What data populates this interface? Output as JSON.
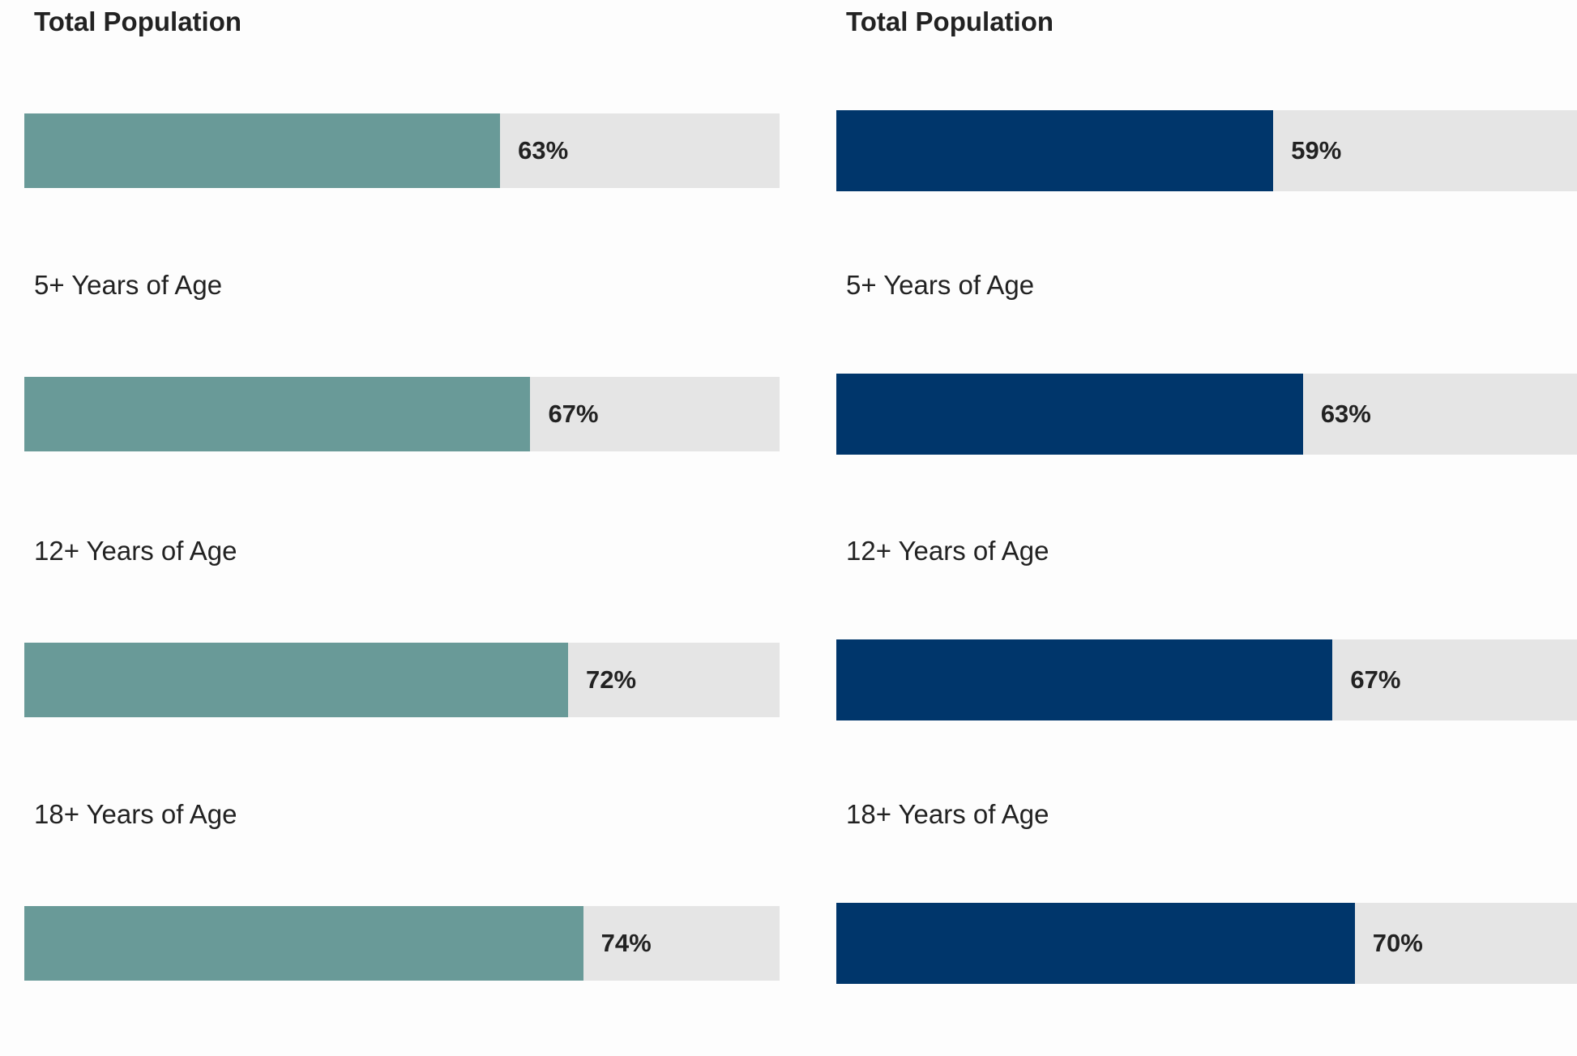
{
  "chart_data": [
    {
      "type": "bar",
      "orientation": "horizontal",
      "color": "#699a98",
      "track_color": "#e5e5e5",
      "categories": [
        "Total Population",
        "5+ Years of Age",
        "12+ Years of Age",
        "18+ Years of Age"
      ],
      "values": [
        63,
        67,
        72,
        74
      ],
      "value_labels": [
        "63%",
        "67%",
        "72%",
        "74%"
      ],
      "xlim": [
        0,
        100
      ]
    },
    {
      "type": "bar",
      "orientation": "horizontal",
      "color": "#00366b",
      "track_color": "#e5e5e5",
      "categories": [
        "Total Population",
        "5+ Years of Age",
        "12+ Years of Age",
        "18+ Years of Age"
      ],
      "values": [
        59,
        63,
        67,
        70
      ],
      "value_labels": [
        "59%",
        "63%",
        "67%",
        "70%"
      ],
      "xlim": [
        0,
        100
      ]
    }
  ]
}
